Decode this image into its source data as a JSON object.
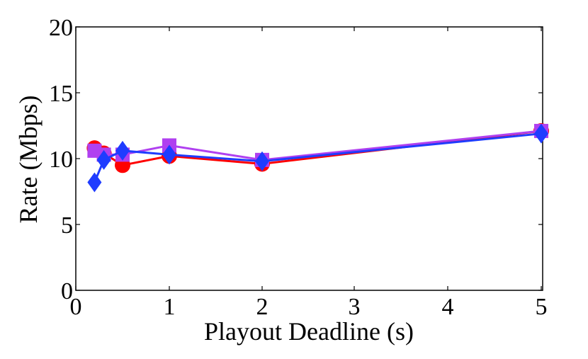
{
  "chart_data": {
    "type": "line",
    "title": "",
    "xlabel": "Playout Deadline (s)",
    "ylabel": "Rate (Mbps)",
    "x_tick_labels": [
      "0",
      "1",
      "2",
      "3",
      "4",
      "5"
    ],
    "y_ticks": [
      0,
      5,
      10,
      15,
      20
    ],
    "ylim": [
      0,
      20
    ],
    "grid": false,
    "legend": "none",
    "series": [
      {
        "marker": "circle",
        "color": "#ff0000",
        "x_labels": [
          "0.2",
          "0.3",
          "0.5",
          "1",
          "2",
          "5"
        ],
        "values": [
          10.8,
          10.4,
          9.5,
          10.2,
          9.6,
          12.1
        ]
      },
      {
        "marker": "square",
        "color": "#b040f0",
        "x_labels": [
          "0.2",
          "0.3",
          "0.5",
          "1",
          "2",
          "5"
        ],
        "values": [
          10.6,
          10.3,
          10.3,
          11.0,
          9.9,
          12.1
        ]
      },
      {
        "marker": "diamond",
        "color": "#1f3cff",
        "x_labels": [
          "0.2",
          "0.3",
          "0.5",
          "1",
          "2",
          "5"
        ],
        "values": [
          8.2,
          9.9,
          10.6,
          10.3,
          9.8,
          11.9
        ]
      }
    ]
  }
}
